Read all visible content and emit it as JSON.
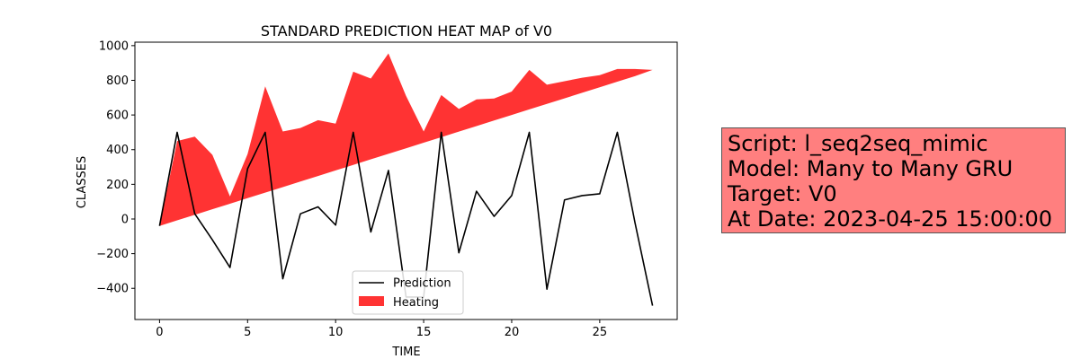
{
  "chart_data": {
    "type": "line",
    "title": "STANDARD PREDICTION HEAT MAP of V0",
    "xlabel": "TIME",
    "ylabel": "CLASSES",
    "xlim": [
      -1.4,
      29.4
    ],
    "ylim": [
      -580,
      1020
    ],
    "xticks": [
      0,
      5,
      10,
      15,
      20,
      25
    ],
    "yticks": [
      -400,
      -200,
      0,
      200,
      400,
      600,
      800,
      1000
    ],
    "legend": {
      "position": "lower-center",
      "entries": [
        "Prediction",
        "Heating"
      ]
    },
    "x": [
      0,
      1,
      2,
      3,
      4,
      5,
      6,
      7,
      8,
      9,
      10,
      11,
      12,
      13,
      14,
      15,
      16,
      17,
      18,
      19,
      20,
      21,
      22,
      23,
      24,
      25,
      26,
      27,
      28
    ],
    "series": [
      {
        "name": "Prediction",
        "kind": "line",
        "color": "#000000",
        "values": [
          -40,
          500,
          30,
          -120,
          -280,
          290,
          500,
          -345,
          30,
          70,
          -35,
          500,
          -75,
          280,
          -450,
          -450,
          500,
          -195,
          160,
          15,
          135,
          500,
          -405,
          110,
          135,
          145,
          500,
          -20,
          -500
        ]
      },
      {
        "name": "Heating",
        "kind": "fill_between",
        "color": "#ff0000",
        "lower": [
          -40,
          -8,
          24,
          56,
          88,
          120,
          152,
          184,
          216,
          248,
          280,
          312,
          344,
          376,
          408,
          440,
          472,
          504,
          536,
          568,
          600,
          632,
          664,
          696,
          728,
          760,
          792,
          824,
          860
        ],
        "upper": [
          -40,
          450,
          475,
          370,
          130,
          375,
          765,
          505,
          525,
          570,
          550,
          850,
          810,
          955,
          710,
          505,
          715,
          635,
          690,
          695,
          735,
          860,
          775,
          795,
          815,
          830,
          865,
          865,
          860
        ]
      }
    ]
  },
  "info_box": {
    "lines": [
      "Script: l_seq2seq_mimic",
      "Model: Many to Many GRU",
      "Target: V0",
      "At Date: 2023-04-25 15:00:00"
    ],
    "background": "#ff7f7f"
  }
}
